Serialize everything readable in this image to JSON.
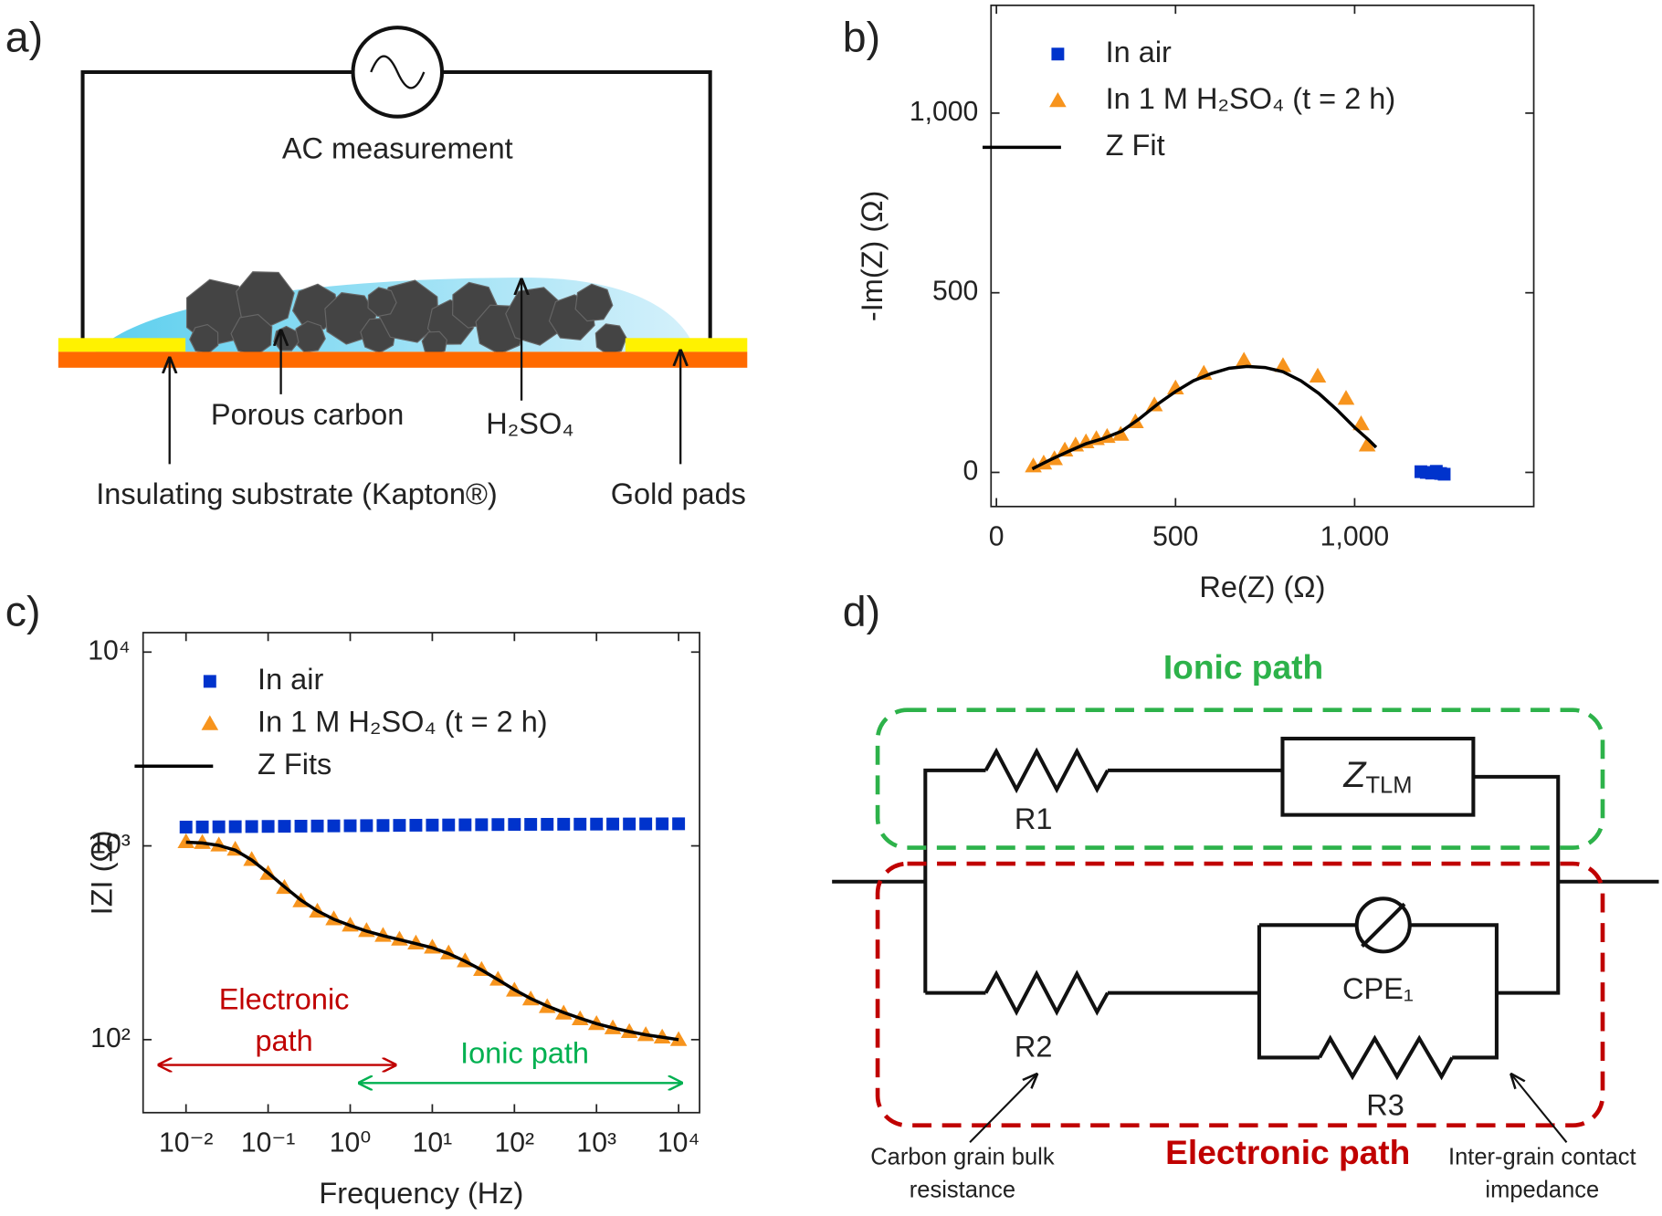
{
  "panel_labels": [
    "a)",
    "b)",
    "c)",
    "d)"
  ],
  "diagram_a": {
    "source": "AC measurement",
    "carbon": "Porous carbon",
    "electrolyte": "H₂SO₄",
    "substrate": "Insulating substrate (Kapton®)",
    "pads": "Gold pads"
  },
  "chart_data": [
    {
      "type": "scatter",
      "xlabel": "Re(Z) (Ω)",
      "ylabel": "-Im(Z) (Ω)",
      "xlim": [
        -15,
        1500
      ],
      "ylim": [
        -95,
        1300
      ],
      "xticks": [
        0,
        500,
        {
          "value": 1000,
          "label": "1,000"
        }
      ],
      "yticks": [
        0,
        500,
        {
          "value": 1000,
          "label": "1,000"
        }
      ],
      "legend": "upper left",
      "series": [
        {
          "name": "In air",
          "color": "#0033cc",
          "marker": "square",
          "x": [
            1185,
            1200,
            1215,
            1228,
            1240,
            1250
          ],
          "values": [
            2,
            0,
            -2,
            3,
            -3,
            -5
          ]
        },
        {
          "name": "In 1 M H₂SO₄ (t = 2 h)",
          "color": "#f7941d",
          "marker": "triangle",
          "x": [
            103,
            132,
            162,
            191,
            221,
            250,
            279,
            309,
            347,
            388,
            441,
            500,
            579,
            691,
            800,
            897,
            976,
            1018,
            1035
          ],
          "values": [
            18,
            26,
            38,
            62,
            76,
            85,
            94,
            100,
            106,
            141,
            188,
            235,
            276,
            312,
            297,
            268,
            206,
            135,
            76
          ]
        },
        {
          "name": "Z Fit",
          "color": "#000000",
          "marker": "line",
          "x": [
            100,
            150,
            200,
            250,
            300,
            350,
            400,
            450,
            500,
            550,
            600,
            650,
            700,
            750,
            800,
            850,
            900,
            950,
            1000,
            1040,
            1060
          ],
          "values": [
            10,
            35,
            58,
            80,
            95,
            115,
            150,
            190,
            225,
            255,
            275,
            290,
            295,
            292,
            280,
            255,
            220,
            175,
            125,
            90,
            70
          ]
        }
      ]
    },
    {
      "type": "scatter",
      "xlabel": "Frequency (Hz)",
      "ylabel": "IZI (Ω)",
      "xlog": true,
      "ylog": true,
      "xlim": [
        0.003,
        18000
      ],
      "ylim": [
        42,
        12600
      ],
      "xticks": [
        {
          "value": 0.01,
          "label": "10⁻²"
        },
        {
          "value": 0.1,
          "label": "10⁻¹"
        },
        {
          "value": 1,
          "label": "10⁰"
        },
        {
          "value": 10,
          "label": "10¹"
        },
        {
          "value": 100,
          "label": "10²"
        },
        {
          "value": 1000,
          "label": "10³"
        },
        {
          "value": 10000,
          "label": "10⁴"
        }
      ],
      "yticks": [
        {
          "value": 100,
          "label": "10²"
        },
        {
          "value": 1000,
          "label": "10³"
        },
        {
          "value": 10000,
          "label": "10⁴"
        }
      ],
      "legend": "upper left",
      "x": [
        0.01,
        0.0158,
        0.0251,
        0.0398,
        0.0631,
        0.1,
        0.158,
        0.251,
        0.398,
        0.631,
        1,
        1.58,
        2.51,
        3.98,
        6.31,
        10,
        15.8,
        25.1,
        39.8,
        63.1,
        100,
        158,
        251,
        398,
        631,
        1000,
        1580,
        2510,
        3980,
        6310,
        10000
      ],
      "series": [
        {
          "name": "In air",
          "color": "#0033cc",
          "marker": "square",
          "values": [
            1250,
            1252,
            1254,
            1256,
            1258,
            1260,
            1262,
            1264,
            1266,
            1268,
            1270,
            1272,
            1274,
            1276,
            1278,
            1280,
            1282,
            1284,
            1286,
            1288,
            1290,
            1291,
            1292,
            1293,
            1294,
            1295,
            1296,
            1297,
            1298,
            1299,
            1300
          ]
        },
        {
          "name": "In 1 M H₂SO₄ (t = 2 h)",
          "color": "#f7941d",
          "marker": "triangle",
          "values": [
            1050,
            1040,
            1010,
            960,
            850,
            720,
            610,
            520,
            460,
            420,
            390,
            365,
            345,
            330,
            315,
            300,
            280,
            255,
            230,
            205,
            180,
            162,
            148,
            137,
            128,
            121,
            115,
            110,
            106,
            103,
            100
          ]
        },
        {
          "name": "Z Fits",
          "color": "#000000",
          "marker": "line",
          "values": [
            1045,
            1035,
            1005,
            950,
            845,
            725,
            615,
            525,
            462,
            418,
            388,
            363,
            344,
            328,
            313,
            298,
            278,
            254,
            229,
            204,
            181,
            163,
            149,
            138,
            129,
            121,
            115,
            110,
            106,
            103,
            100
          ]
        }
      ],
      "annotations": {
        "electronic": [
          "Electronic",
          "path"
        ],
        "ionic": "Ionic path"
      }
    }
  ],
  "diagram_d": {
    "ionic": "Ionic path",
    "electronic": "Electronic path",
    "r1": "R1",
    "ztlm": {
      "main": "Z",
      "sub": "TLM"
    },
    "cpe": "CPE₁",
    "r2": "R2",
    "r3": "R3",
    "bulk": [
      "Carbon grain bulk",
      "resistance"
    ],
    "contact": [
      "Inter-grain contact",
      "impedance"
    ]
  }
}
